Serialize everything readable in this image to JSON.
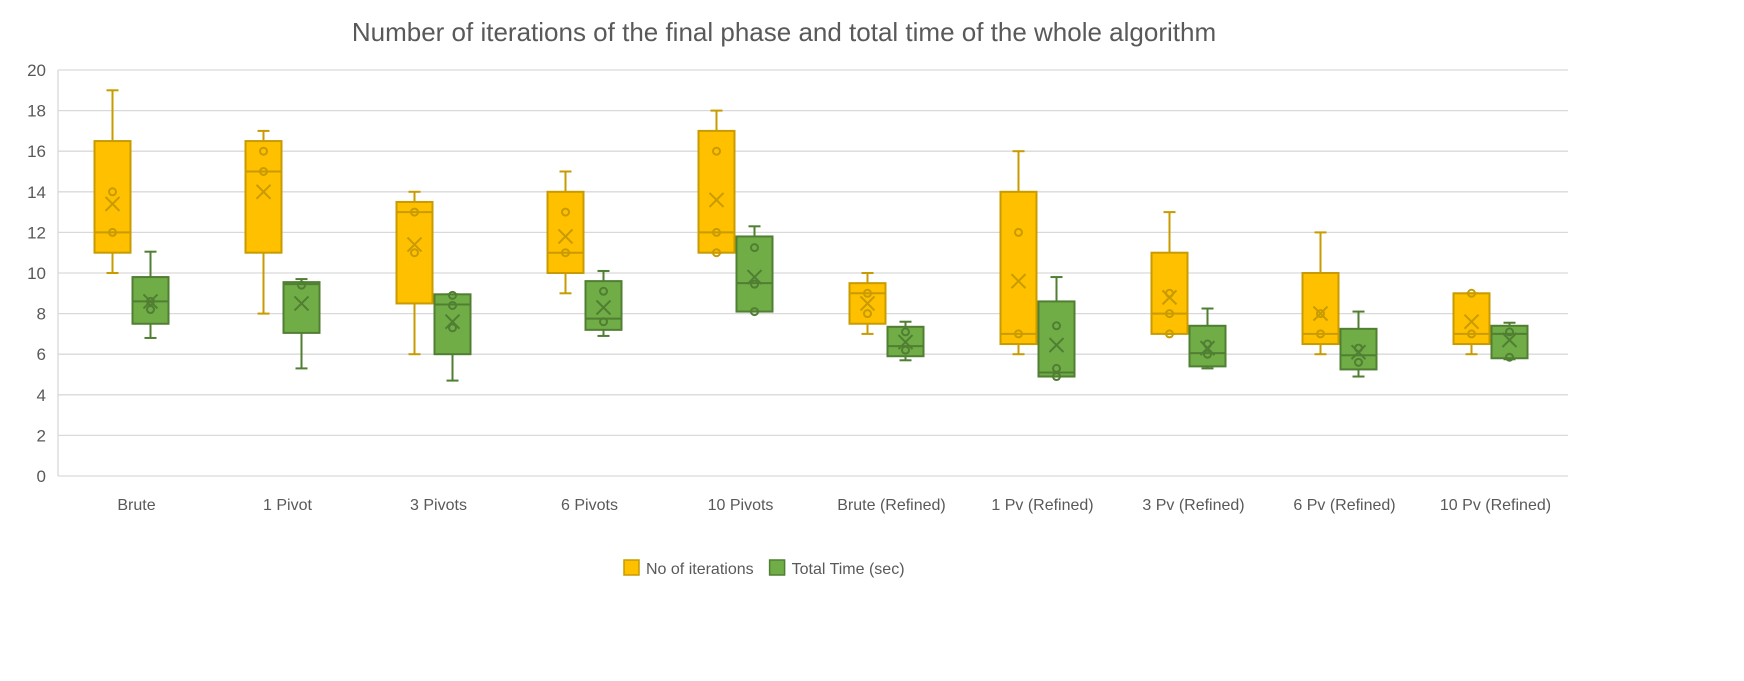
{
  "chart_data": {
    "type": "box",
    "title": "Number of iterations of the final phase and total time of the whole algorithm",
    "xlabel": "",
    "ylabel": "",
    "ylim": [
      0,
      20
    ],
    "yticks": [
      0,
      2,
      4,
      6,
      8,
      10,
      12,
      14,
      16,
      18,
      20
    ],
    "grid": true,
    "legend_position": "bottom",
    "categories": [
      "Brute",
      "1 Pivot",
      "3 Pivots",
      "6 Pivots",
      "10 Pivots",
      "Brute (Refined)",
      "1 Pv (Refined)",
      "3 Pv (Refined)",
      "6 Pv (Refined)",
      "10 Pv (Refined)"
    ],
    "series": [
      {
        "name": "No of iterations",
        "color": "#FFC000",
        "edge_color": "#C89B00",
        "boxes": [
          {
            "min": 10,
            "q1": 11,
            "median": 12,
            "q3": 16.5,
            "max": 19,
            "mean": 13.4,
            "points": [
              14,
              12
            ]
          },
          {
            "min": 8,
            "q1": 11,
            "median": 15,
            "q3": 16.5,
            "max": 17,
            "mean": 14,
            "points": [
              16,
              15
            ]
          },
          {
            "min": 6,
            "q1": 8.5,
            "median": 13,
            "q3": 13.5,
            "max": 14,
            "mean": 11.4,
            "points": [
              13,
              11
            ]
          },
          {
            "min": 9,
            "q1": 10,
            "median": 11,
            "q3": 14,
            "max": 15,
            "mean": 11.8,
            "points": [
              13,
              11
            ]
          },
          {
            "min": 11,
            "q1": 11,
            "median": 12,
            "q3": 17,
            "max": 18,
            "mean": 13.6,
            "points": [
              16,
              12,
              11
            ]
          },
          {
            "min": 7,
            "q1": 7.5,
            "median": 9,
            "q3": 9.5,
            "max": 10,
            "mean": 8.5,
            "points": [
              9,
              8
            ]
          },
          {
            "min": 6,
            "q1": 6.5,
            "median": 7,
            "q3": 14,
            "max": 16,
            "mean": 9.6,
            "points": [
              12,
              7
            ]
          },
          {
            "min": 7,
            "q1": 7,
            "median": 8,
            "q3": 11,
            "max": 13,
            "mean": 8.8,
            "points": [
              9,
              8,
              7
            ]
          },
          {
            "min": 6,
            "q1": 6.5,
            "median": 7,
            "q3": 10,
            "max": 12,
            "mean": 8,
            "points": [
              8,
              7
            ]
          },
          {
            "min": 6,
            "q1": 6.5,
            "median": 7,
            "q3": 9,
            "max": 9,
            "mean": 7.6,
            "points": [
              9,
              7
            ]
          }
        ]
      },
      {
        "name": "Total Time (sec)",
        "color": "#70AD47",
        "edge_color": "#507E32",
        "boxes": [
          {
            "min": 6.8,
            "q1": 7.5,
            "median": 8.6,
            "q3": 9.8,
            "max": 11.05,
            "mean": 8.6,
            "points": [
              8.2,
              8.6
            ]
          },
          {
            "min": 5.3,
            "q1": 7.05,
            "median": 9.45,
            "q3": 9.55,
            "max": 9.7,
            "mean": 8.5,
            "points": [
              9.4
            ]
          },
          {
            "min": 4.7,
            "q1": 6,
            "median": 8.45,
            "q3": 8.95,
            "max": 8.95,
            "mean": 7.6,
            "points": [
              8.9,
              8.4,
              7.3
            ]
          },
          {
            "min": 6.9,
            "q1": 7.2,
            "median": 7.75,
            "q3": 9.6,
            "max": 10.1,
            "mean": 8.3,
            "points": [
              9.1,
              7.6
            ]
          },
          {
            "min": 8.1,
            "q1": 8.1,
            "median": 9.5,
            "q3": 11.8,
            "max": 12.3,
            "mean": 9.8,
            "points": [
              11.25,
              9.45,
              8.1
            ]
          },
          {
            "min": 5.7,
            "q1": 5.9,
            "median": 6.4,
            "q3": 7.35,
            "max": 7.6,
            "mean": 6.6,
            "points": [
              7.1,
              6.2
            ]
          },
          {
            "min": 4.9,
            "q1": 4.9,
            "median": 5.1,
            "q3": 8.6,
            "max": 9.8,
            "mean": 6.45,
            "points": [
              7.4,
              5.3,
              4.9
            ]
          },
          {
            "min": 5.3,
            "q1": 5.4,
            "median": 6.05,
            "q3": 7.4,
            "max": 8.25,
            "mean": 6.3,
            "points": [
              6.5,
              6.0
            ]
          },
          {
            "min": 4.9,
            "q1": 5.25,
            "median": 5.95,
            "q3": 7.25,
            "max": 8.1,
            "mean": 6.1,
            "points": [
              6.3,
              5.6
            ]
          },
          {
            "min": 5.75,
            "q1": 5.8,
            "median": 7.0,
            "q3": 7.4,
            "max": 7.55,
            "mean": 6.7,
            "points": [
              7.1,
              5.85
            ]
          }
        ]
      }
    ]
  }
}
